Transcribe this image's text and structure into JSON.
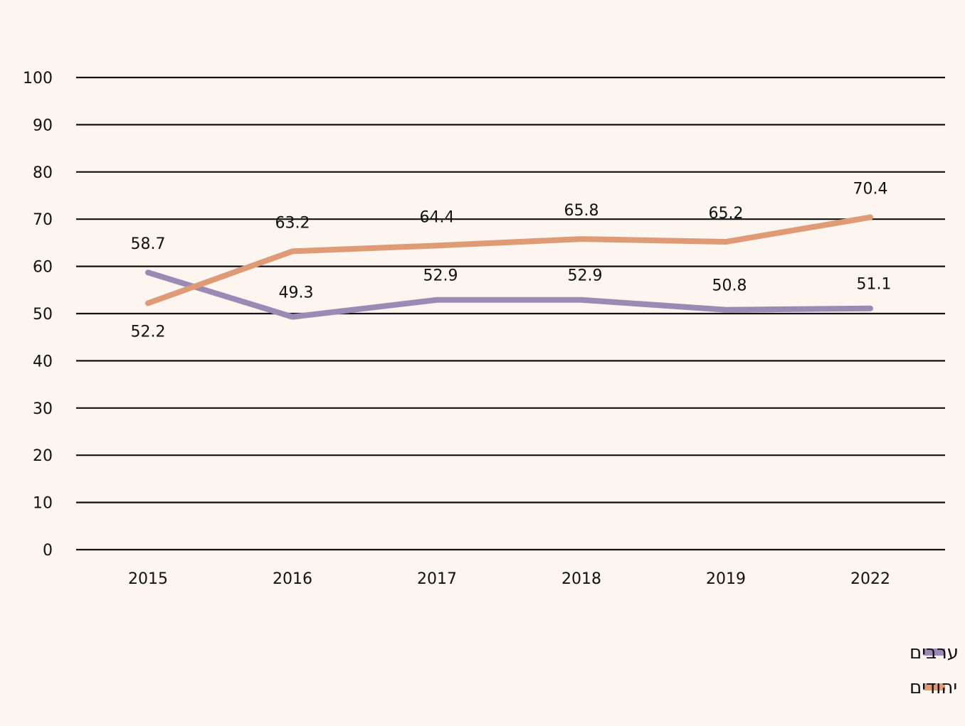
{
  "chart_data": {
    "type": "line",
    "x": [
      "2015",
      "2016",
      "2017",
      "2018",
      "2019",
      "2022"
    ],
    "ylim": [
      0,
      100
    ],
    "yticks": [
      0,
      10,
      20,
      30,
      40,
      50,
      60,
      70,
      80,
      90,
      100
    ],
    "grid": true,
    "legend_position": "bottom-right",
    "series": [
      {
        "name": "ערבים",
        "color": "#9b8bb4",
        "values": [
          58.7,
          49.3,
          52.9,
          52.9,
          50.8,
          51.1
        ],
        "labels": [
          "58.7",
          "49.3",
          "52.9",
          "52.9",
          "50.8",
          "51.1"
        ]
      },
      {
        "name": "יהודים",
        "color": "#df9b76",
        "values": [
          52.2,
          63.2,
          64.4,
          65.8,
          65.2,
          70.4
        ],
        "labels": [
          "52.2",
          "63.2",
          "64.4",
          "65.8",
          "65.2",
          "70.4"
        ]
      }
    ]
  }
}
